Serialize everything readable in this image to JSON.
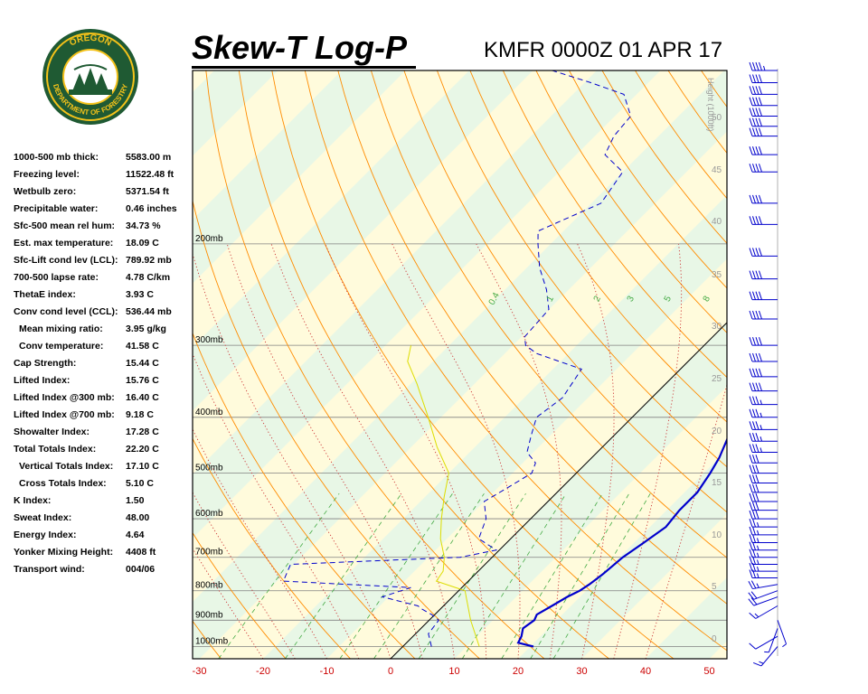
{
  "header": {
    "title": "Skew-T Log-P",
    "station_time": "KMFR 0000Z 01 APR 17"
  },
  "logo": {
    "top_text": "OREGON",
    "bottom_text": "DEPARTMENT OF FORESTRY"
  },
  "indices": [
    {
      "label": "1000-500 mb thick:",
      "value": "5583.00 m"
    },
    {
      "label": "Freezing level:",
      "value": "11522.48 ft"
    },
    {
      "label": "Wetbulb zero:",
      "value": "5371.54 ft"
    },
    {
      "label": "Precipitable water:",
      "value": "0.46 inches"
    },
    {
      "label": "Sfc-500 mean rel hum:",
      "value": "34.73 %"
    },
    {
      "label": "Est. max temperature:",
      "value": "18.09 C"
    },
    {
      "label": "Sfc-Lift cond lev (LCL):",
      "value": "789.92 mb"
    },
    {
      "label": "700-500 lapse rate:",
      "value": "4.78 C/km"
    },
    {
      "label": "ThetaE index:",
      "value": "3.93 C"
    },
    {
      "label": "Conv cond level (CCL):",
      "value": "536.44 mb"
    },
    {
      "label": "Mean mixing ratio:",
      "value": "3.95 g/kg",
      "indent": true
    },
    {
      "label": "Conv temperature:",
      "value": "41.58 C",
      "indent": true
    },
    {
      "label": "Cap Strength:",
      "value": "15.44 C"
    },
    {
      "label": "Lifted Index:",
      "value": "15.76 C"
    },
    {
      "label": "Lifted Index @300 mb:",
      "value": "16.40 C"
    },
    {
      "label": "Lifted Index @700 mb:",
      "value": "9.18 C"
    },
    {
      "label": "Showalter Index:",
      "value": "17.28 C"
    },
    {
      "label": "Total Totals Index:",
      "value": "22.20 C"
    },
    {
      "label": "Vertical Totals Index:",
      "value": "17.10 C",
      "indent": true
    },
    {
      "label": "Cross Totals Index:",
      "value": "5.10 C",
      "indent": true
    },
    {
      "label": "K Index:",
      "value": "1.50"
    },
    {
      "label": "Sweat Index:",
      "value": "48.00"
    },
    {
      "label": "Energy Index:",
      "value": "4.64"
    },
    {
      "label": "Yonker Mixing Height:",
      "value": "4408 ft"
    },
    {
      "label": "Transport wind:",
      "value": "004/06"
    }
  ],
  "chart_data": {
    "type": "line",
    "xlabel": "",
    "ylabel": "",
    "x_ticks": [
      -30,
      -20,
      -10,
      0,
      10,
      20,
      30,
      40,
      50
    ],
    "pressure_levels": [
      "200mb",
      "300mb",
      "400mb",
      "500mb",
      "600mb",
      "700mb",
      "800mb",
      "900mb",
      "1000mb"
    ],
    "height_axis_label": "Height (1000ft)",
    "height_ticks": [
      "50",
      "45",
      "40",
      "35",
      "30",
      "25",
      "20",
      "15",
      "10",
      "5",
      "0"
    ],
    "mixing_ratio_labels": [
      "0.4",
      "1",
      "2",
      "3",
      "5",
      "8"
    ],
    "series": [
      {
        "name": "temperature",
        "color": "#0000cc",
        "style": "solid",
        "points_p_t": [
          [
            1000,
            20.5
          ],
          [
            985,
            17.5
          ],
          [
            960,
            17.0
          ],
          [
            930,
            16.0
          ],
          [
            900,
            16.5
          ],
          [
            880,
            16.0
          ],
          [
            850,
            17.0
          ],
          [
            820,
            18.0
          ],
          [
            800,
            19.0
          ],
          [
            780,
            19.5
          ],
          [
            750,
            20.0
          ],
          [
            700,
            20.5
          ],
          [
            660,
            21.5
          ],
          [
            620,
            22.5
          ],
          [
            580,
            22.0
          ],
          [
            540,
            22.0
          ],
          [
            500,
            21.0
          ],
          [
            470,
            20.0
          ],
          [
            430,
            18.0
          ],
          [
            400,
            16.5
          ],
          [
            360,
            14.0
          ],
          [
            320,
            10.0
          ],
          [
            300,
            7.5
          ],
          [
            280,
            5.0
          ],
          [
            250,
            1.0
          ],
          [
            220,
            -1.5
          ],
          [
            200,
            -3.0
          ],
          [
            185,
            -3.5
          ],
          [
            170,
            -4.0
          ],
          [
            160,
            -3.0
          ],
          [
            150,
            0.0
          ],
          [
            140,
            7.0
          ],
          [
            135,
            7.5
          ],
          [
            120,
            12.0
          ],
          [
            100,
            28.0
          ]
        ]
      },
      {
        "name": "dewpoint",
        "color": "#0000cc",
        "style": "dashed",
        "points_p_t": [
          [
            1000,
            4.5
          ],
          [
            950,
            2.0
          ],
          [
            900,
            1.5
          ],
          [
            880,
            -0.5
          ],
          [
            860,
            -3.0
          ],
          [
            850,
            -4.0
          ],
          [
            820,
            -11.0
          ],
          [
            790,
            -8.0
          ],
          [
            770,
            -29.0
          ],
          [
            720,
            -30.5
          ],
          [
            700,
            -5.0
          ],
          [
            680,
            -0.5
          ],
          [
            650,
            -5.0
          ],
          [
            600,
            -7.0
          ],
          [
            560,
            -10.0
          ],
          [
            530,
            -8.5
          ],
          [
            500,
            -7.0
          ],
          [
            480,
            -8.0
          ],
          [
            460,
            -11.0
          ],
          [
            430,
            -13.0
          ],
          [
            400,
            -15.0
          ],
          [
            370,
            -14.0
          ],
          [
            330,
            -15.5
          ],
          [
            310,
            -25.0
          ],
          [
            300,
            -28.0
          ],
          [
            290,
            -29.5
          ],
          [
            260,
            -30.0
          ],
          [
            240,
            -33.5
          ],
          [
            220,
            -38.0
          ],
          [
            200,
            -42.0
          ],
          [
            190,
            -44.0
          ],
          [
            170,
            -38.5
          ],
          [
            150,
            -40.0
          ],
          [
            140,
            -45.5
          ],
          [
            130,
            -47.0
          ],
          [
            120,
            -47.5
          ],
          [
            110,
            -52.0
          ],
          [
            105,
            -59.0
          ],
          [
            100,
            -67.0
          ]
        ]
      },
      {
        "name": "parcel",
        "color": "#dddd00",
        "style": "solid",
        "points_p_t": [
          [
            1000,
            12.0
          ],
          [
            900,
            6.5
          ],
          [
            800,
            1.0
          ],
          [
            770,
            -5.0
          ],
          [
            740,
            -5.5
          ],
          [
            700,
            -7.5
          ],
          [
            650,
            -11.0
          ],
          [
            600,
            -14.0
          ],
          [
            550,
            -17.0
          ],
          [
            500,
            -20.0
          ],
          [
            450,
            -26.0
          ],
          [
            400,
            -32.0
          ],
          [
            350,
            -39.0
          ],
          [
            320,
            -44.0
          ],
          [
            300,
            -46.0
          ]
        ]
      }
    ],
    "wind_barbs": [
      {
        "p": 1000,
        "dir": 220,
        "spd": 15
      },
      {
        "p": 960,
        "dir": 240,
        "spd": 10
      },
      {
        "p": 930,
        "dir": 200,
        "spd": 5
      },
      {
        "p": 900,
        "dir": 160,
        "spd": 5
      },
      {
        "p": 850,
        "dir": 240,
        "spd": 15
      },
      {
        "p": 820,
        "dir": 250,
        "spd": 20
      },
      {
        "p": 800,
        "dir": 250,
        "spd": 20
      },
      {
        "p": 780,
        "dir": 260,
        "spd": 25
      },
      {
        "p": 760,
        "dir": 270,
        "spd": 25
      },
      {
        "p": 740,
        "dir": 270,
        "spd": 25
      },
      {
        "p": 720,
        "dir": 270,
        "spd": 25
      },
      {
        "p": 700,
        "dir": 270,
        "spd": 25
      },
      {
        "p": 680,
        "dir": 270,
        "spd": 25
      },
      {
        "p": 660,
        "dir": 270,
        "spd": 25
      },
      {
        "p": 640,
        "dir": 270,
        "spd": 25
      },
      {
        "p": 620,
        "dir": 270,
        "spd": 25
      },
      {
        "p": 600,
        "dir": 270,
        "spd": 30
      },
      {
        "p": 580,
        "dir": 270,
        "spd": 30
      },
      {
        "p": 560,
        "dir": 270,
        "spd": 30
      },
      {
        "p": 540,
        "dir": 270,
        "spd": 30
      },
      {
        "p": 520,
        "dir": 270,
        "spd": 30
      },
      {
        "p": 500,
        "dir": 270,
        "spd": 30
      },
      {
        "p": 480,
        "dir": 270,
        "spd": 30
      },
      {
        "p": 460,
        "dir": 270,
        "spd": 35
      },
      {
        "p": 440,
        "dir": 270,
        "spd": 35
      },
      {
        "p": 420,
        "dir": 270,
        "spd": 35
      },
      {
        "p": 400,
        "dir": 270,
        "spd": 35
      },
      {
        "p": 380,
        "dir": 270,
        "spd": 35
      },
      {
        "p": 360,
        "dir": 270,
        "spd": 40
      },
      {
        "p": 340,
        "dir": 270,
        "spd": 40
      },
      {
        "p": 320,
        "dir": 270,
        "spd": 40
      },
      {
        "p": 300,
        "dir": 270,
        "spd": 40
      },
      {
        "p": 270,
        "dir": 270,
        "spd": 40
      },
      {
        "p": 250,
        "dir": 270,
        "spd": 40
      },
      {
        "p": 230,
        "dir": 270,
        "spd": 40
      },
      {
        "p": 210,
        "dir": 270,
        "spd": 40
      },
      {
        "p": 185,
        "dir": 270,
        "spd": 40
      },
      {
        "p": 170,
        "dir": 270,
        "spd": 40
      },
      {
        "p": 150,
        "dir": 270,
        "spd": 40
      },
      {
        "p": 140,
        "dir": 270,
        "spd": 40
      },
      {
        "p": 130,
        "dir": 270,
        "spd": 40
      },
      {
        "p": 125,
        "dir": 270,
        "spd": 40
      },
      {
        "p": 120,
        "dir": 270,
        "spd": 40
      },
      {
        "p": 115,
        "dir": 270,
        "spd": 40
      },
      {
        "p": 110,
        "dir": 270,
        "spd": 40
      },
      {
        "p": 105,
        "dir": 270,
        "spd": 40
      },
      {
        "p": 100,
        "dir": 270,
        "spd": 45
      }
    ],
    "colors": {
      "isotherm": "#a0a0a0",
      "isobar": "#808080",
      "dry_adiabat": "#ff8c00",
      "moist_adiabat": "#cc3333",
      "mixing_ratio": "#44aa44",
      "band_green": "#e8f7e6",
      "band_yellow": "#fffbdc",
      "temp_line": "#0000cc",
      "parcel_line": "#dddd00",
      "axis_labels": "#cc0000",
      "wind_barbs": "#0000cc",
      "title": "#000000"
    }
  }
}
